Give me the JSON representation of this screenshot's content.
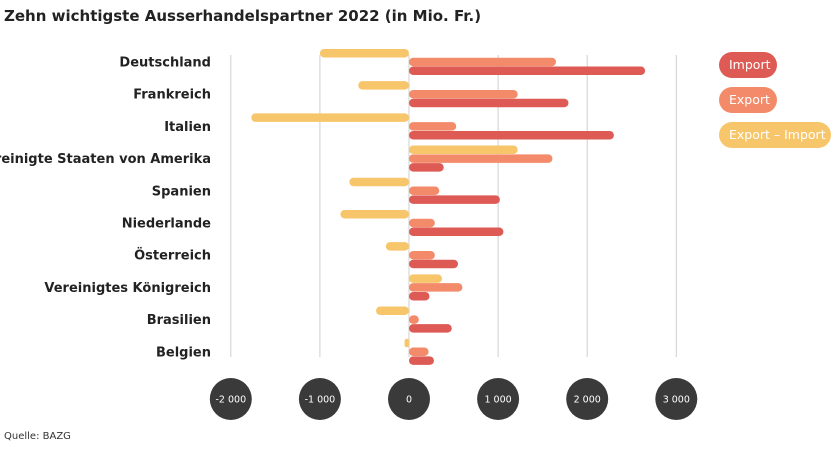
{
  "chart_data": {
    "type": "bar",
    "orientation": "horizontal",
    "title": "Zehn wichtigste Ausserhandelspartner 2022 (in Mio. Fr.)",
    "source": "Quelle: BAZG",
    "categories": [
      "Deutschland",
      "Frankreich",
      "Italien",
      "Vereinigte Staaten von Amerika",
      "Spanien",
      "Niederlande",
      "Österreich",
      "Vereinigtes Königreich",
      "Brasilien",
      "Belgien"
    ],
    "series": [
      {
        "name": "Export – Import",
        "color": "#f7c66a",
        "values": [
          -1000,
          -570,
          -1770,
          1220,
          -670,
          -770,
          -260,
          370,
          -370,
          -50
        ]
      },
      {
        "name": "Export",
        "color": "#f38b6b",
        "values": [
          1650,
          1220,
          530,
          1610,
          340,
          290,
          290,
          600,
          110,
          220
        ]
      },
      {
        "name": "Import",
        "color": "#de5a55",
        "values": [
          2650,
          1790,
          2300,
          390,
          1020,
          1060,
          550,
          230,
          480,
          280
        ]
      }
    ],
    "legend": [
      "Import",
      "Export",
      "Export – Import"
    ],
    "legend_position": "right",
    "xlim": [
      -2000,
      3000
    ],
    "xticks": [
      -2000,
      -1000,
      0,
      1000,
      2000,
      3000
    ],
    "xtick_labels": [
      "-2 000",
      "-1 000",
      "0",
      "1 000",
      "2 000",
      "3 000"
    ],
    "grid": true
  }
}
